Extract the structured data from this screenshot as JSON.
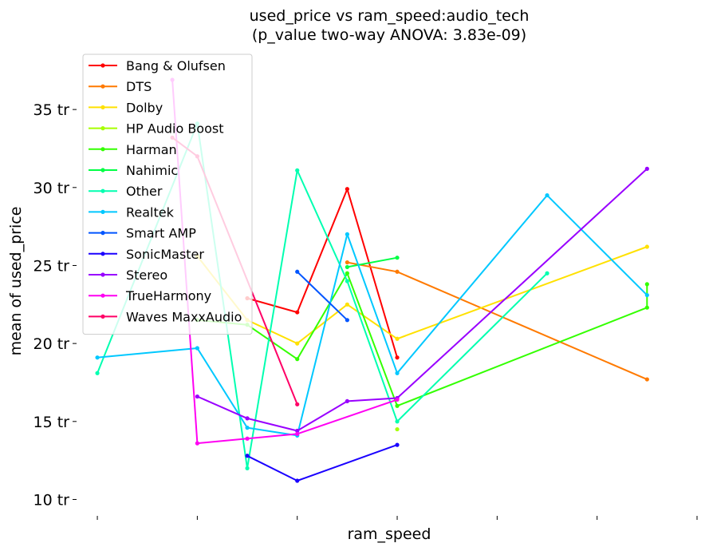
{
  "chart_data": {
    "type": "line",
    "title": "used_price vs ram_speed:audio_tech",
    "subtitle": "(p_value two-way ANOVA: 3.83e-09)",
    "xlabel": "ram_speed",
    "ylabel": "mean of used_price",
    "ylim": [
      9.0,
      39.0
    ],
    "yticks": [
      10,
      15,
      20,
      25,
      30,
      35
    ],
    "ytick_labels": [
      "10 tr",
      "15 tr",
      "20 tr",
      "25 tr",
      "30 tr",
      "35 tr"
    ],
    "x_categories_count": 11,
    "x_tick_positions": [
      0,
      2,
      4,
      6,
      8,
      10,
      12
    ],
    "xlim": [
      -0.4,
      12.0
    ],
    "legend_position": "top-left",
    "grid": false,
    "series": [
      {
        "name": "Bang & Olufsen",
        "color": "#ff0000",
        "x": [
          3,
          4,
          5,
          6
        ],
        "y": [
          22.9,
          22.0,
          29.9,
          19.1
        ]
      },
      {
        "name": "DTS",
        "color": "#ff7a00",
        "x": [
          5,
          6,
          11
        ],
        "y": [
          25.2,
          24.6,
          17.7
        ]
      },
      {
        "name": "Dolby",
        "color": "#ffe100",
        "x": [
          2,
          3,
          4,
          5,
          6,
          11
        ],
        "y": [
          25.6,
          21.5,
          20.0,
          22.5,
          20.3,
          26.2
        ]
      },
      {
        "name": "HP Audio Boost",
        "color": "#a6ff00",
        "x": [
          6
        ],
        "y": [
          14.5
        ]
      },
      {
        "name": "Harman",
        "color": "#33ff00",
        "x": [
          2,
          3,
          4,
          5,
          6,
          11,
          11
        ],
        "y": [
          21.5,
          21.2,
          19.0,
          24.5,
          16.0,
          22.3,
          23.8
        ]
      },
      {
        "name": "Nahimic",
        "color": "#00ff44",
        "x": [
          5,
          6
        ],
        "y": [
          24.9,
          25.5
        ]
      },
      {
        "name": "Other",
        "color": "#00ffb0",
        "x": [
          0,
          2,
          3,
          4,
          5,
          6,
          9
        ],
        "y": [
          18.1,
          34.1,
          12.0,
          31.1,
          24.0,
          15.0,
          24.5
        ]
      },
      {
        "name": "Realtek",
        "color": "#00c8ff",
        "x": [
          0,
          2,
          3,
          4,
          5,
          6,
          9,
          11
        ],
        "y": [
          19.1,
          19.7,
          14.6,
          14.1,
          27.0,
          18.1,
          29.5,
          23.1
        ]
      },
      {
        "name": "Smart AMP",
        "color": "#0055ff",
        "x": [
          4,
          5
        ],
        "y": [
          24.6,
          21.5
        ]
      },
      {
        "name": "SonicMaster",
        "color": "#1a00ff",
        "x": [
          3,
          4,
          6
        ],
        "y": [
          12.8,
          11.2,
          13.5
        ]
      },
      {
        "name": "Stereo",
        "color": "#9900ff",
        "x": [
          2,
          3,
          4,
          5,
          6,
          11
        ],
        "y": [
          16.6,
          15.2,
          14.4,
          16.3,
          16.5,
          31.2
        ]
      },
      {
        "name": "TrueHarmony",
        "color": "#ff00f2",
        "x": [
          1.5,
          2,
          3,
          4,
          6
        ],
        "y": [
          36.9,
          13.6,
          13.9,
          14.2,
          16.4
        ]
      },
      {
        "name": "Waves MaxxAudio",
        "color": "#ff0066",
        "x": [
          1.5,
          2,
          4
        ],
        "y": [
          33.2,
          32.0,
          16.1
        ]
      }
    ]
  }
}
